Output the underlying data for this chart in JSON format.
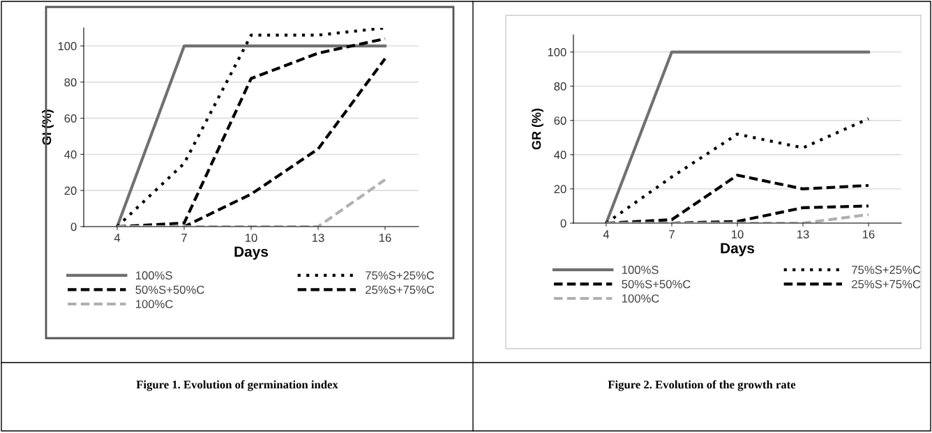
{
  "chart_data": [
    {
      "type": "line",
      "xlabel": "Days",
      "ylabel": "GI (%)",
      "categories": [
        "4",
        "7",
        "10",
        "13",
        "16"
      ],
      "ylim": [
        0,
        110
      ],
      "yticks": [
        0,
        20,
        40,
        60,
        80,
        100
      ],
      "grid": "y",
      "legend": "bottom",
      "marker": "none",
      "series": [
        {
          "name": "100%S",
          "color": "#707070",
          "line_style": "solid",
          "values": [
            0,
            100,
            100,
            100,
            100
          ]
        },
        {
          "name": "75%S+25%C",
          "color": "#000000",
          "line_style": "dotted",
          "values": [
            0,
            35,
            106,
            106,
            110
          ]
        },
        {
          "name": "50%S+50%C",
          "color": "#000000",
          "line_style": "dashed",
          "values": [
            0,
            2,
            82,
            96,
            104
          ]
        },
        {
          "name": "25%S+75%C",
          "color": "#000000",
          "line_style": "dashed",
          "values": [
            0,
            0,
            18,
            43,
            93
          ]
        },
        {
          "name": "100%C",
          "color": "#b0b0b0",
          "line_style": "dashed",
          "values": [
            0,
            0,
            0,
            0,
            26
          ]
        }
      ],
      "annotations": [
        "Figure 1. Evolution of germination index"
      ]
    },
    {
      "type": "line",
      "xlabel": "Days",
      "ylabel": "GR (%)",
      "categories": [
        "4",
        "7",
        "10",
        "13",
        "16"
      ],
      "ylim": [
        0,
        110
      ],
      "yticks": [
        0,
        20,
        40,
        60,
        80,
        100
      ],
      "grid": "y",
      "legend": "bottom",
      "marker": "none",
      "series": [
        {
          "name": "100%S",
          "color": "#707070",
          "line_style": "solid",
          "values": [
            0,
            100,
            100,
            100,
            100
          ]
        },
        {
          "name": "75%S+25%C",
          "color": "#000000",
          "line_style": "dotted",
          "values": [
            0,
            27,
            52,
            44,
            61
          ]
        },
        {
          "name": "50%S+50%C",
          "color": "#000000",
          "line_style": "dashed",
          "values": [
            0,
            2,
            28,
            20,
            22
          ]
        },
        {
          "name": "25%S+75%C",
          "color": "#000000",
          "line_style": "dashed",
          "values": [
            0,
            0,
            1,
            9,
            10
          ]
        },
        {
          "name": "100%C",
          "color": "#b0b0b0",
          "line_style": "dashed",
          "values": [
            0,
            0,
            0,
            0,
            5
          ]
        }
      ],
      "annotations": [
        "Figure 2. Evolution of the growth rate"
      ]
    }
  ]
}
